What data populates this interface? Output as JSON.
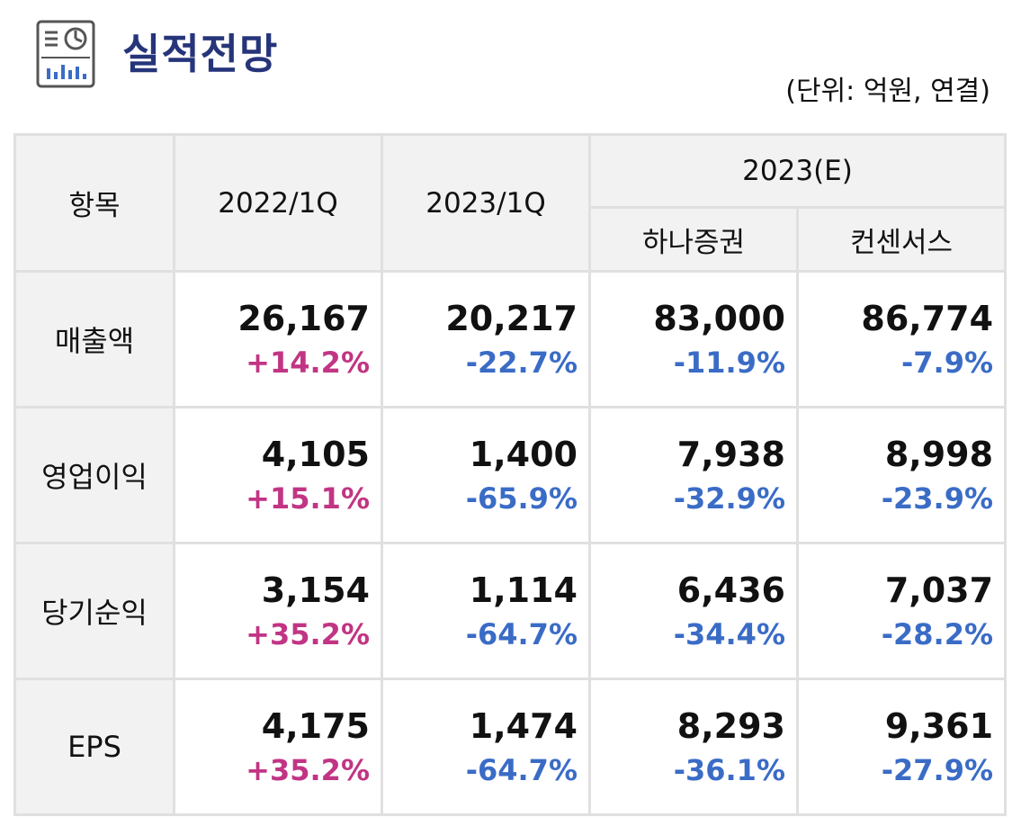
{
  "header": {
    "icon": "report-chart-icon",
    "title": "실적전망",
    "unit_note": "(단위: 억원, 연결)"
  },
  "colors": {
    "title": "#26357a",
    "positive": "#c13584",
    "negative": "#3a6cc6",
    "header_bg": "#f2f2f2",
    "border": "#e0e0e0"
  },
  "table": {
    "headers": {
      "item": "항목",
      "col_2022_1q": "2022/1Q",
      "col_2023_1q": "2023/1Q",
      "col_2023e": "2023(E)",
      "sub_hana": "하나증권",
      "sub_consensus": "컨센서스"
    },
    "rows": [
      {
        "label": "매출액",
        "cells": [
          {
            "value": "26,167",
            "change": "+14.2%",
            "dir": "pos"
          },
          {
            "value": "20,217",
            "change": "-22.7%",
            "dir": "neg"
          },
          {
            "value": "83,000",
            "change": "-11.9%",
            "dir": "neg"
          },
          {
            "value": "86,774",
            "change": "-7.9%",
            "dir": "neg"
          }
        ]
      },
      {
        "label": "영업이익",
        "cells": [
          {
            "value": "4,105",
            "change": "+15.1%",
            "dir": "pos"
          },
          {
            "value": "1,400",
            "change": "-65.9%",
            "dir": "neg"
          },
          {
            "value": "7,938",
            "change": "-32.9%",
            "dir": "neg"
          },
          {
            "value": "8,998",
            "change": "-23.9%",
            "dir": "neg"
          }
        ]
      },
      {
        "label": "당기순익",
        "cells": [
          {
            "value": "3,154",
            "change": "+35.2%",
            "dir": "pos"
          },
          {
            "value": "1,114",
            "change": "-64.7%",
            "dir": "neg"
          },
          {
            "value": "6,436",
            "change": "-34.4%",
            "dir": "neg"
          },
          {
            "value": "7,037",
            "change": "-28.2%",
            "dir": "neg"
          }
        ]
      },
      {
        "label": "EPS",
        "cells": [
          {
            "value": "4,175",
            "change": "+35.2%",
            "dir": "pos"
          },
          {
            "value": "1,474",
            "change": "-64.7%",
            "dir": "neg"
          },
          {
            "value": "8,293",
            "change": "-36.1%",
            "dir": "neg"
          },
          {
            "value": "9,361",
            "change": "-27.9%",
            "dir": "neg"
          }
        ]
      }
    ]
  }
}
